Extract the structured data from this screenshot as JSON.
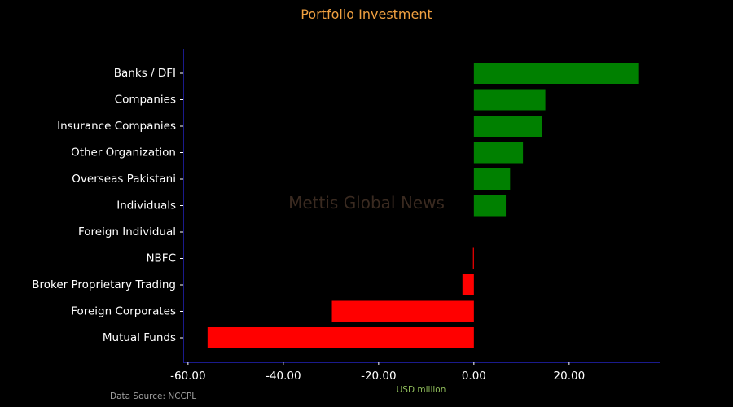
{
  "colors": {
    "background": "#000000",
    "title": "#f0a040",
    "positive": "#008000",
    "negative": "#ff0000",
    "axis_line": "#1a1a8c",
    "text": "#ffffff",
    "axis_title": "#8fbc5a",
    "source": "#a0a0a0",
    "watermark": "#3a2a20"
  },
  "watermark": "Mettis Global News",
  "source_note": "Data Source: NCCPL",
  "chart_data": {
    "type": "bar",
    "orientation": "horizontal",
    "title": "Portfolio Investment",
    "xlabel": "USD million",
    "ylabel": "",
    "xlim": [
      -61,
      39
    ],
    "xticks": [
      -60,
      -40,
      -20,
      0,
      20
    ],
    "xtick_labels": [
      "-60.00",
      "-40.00",
      "-20.00",
      "0.00",
      "20.00"
    ],
    "categories": [
      "Banks / DFI",
      "Companies",
      "Insurance Companies",
      "Other Organization",
      "Overseas Pakistani",
      "Individuals",
      "Foreign Individual",
      "NBFC",
      "Broker Proprietary Trading",
      "Foreign Corporates",
      "Mutual Funds"
    ],
    "values": [
      34.5,
      15.0,
      14.3,
      10.3,
      7.6,
      6.7,
      0.0,
      -0.2,
      -2.4,
      -29.8,
      -55.9
    ],
    "grid": false
  }
}
